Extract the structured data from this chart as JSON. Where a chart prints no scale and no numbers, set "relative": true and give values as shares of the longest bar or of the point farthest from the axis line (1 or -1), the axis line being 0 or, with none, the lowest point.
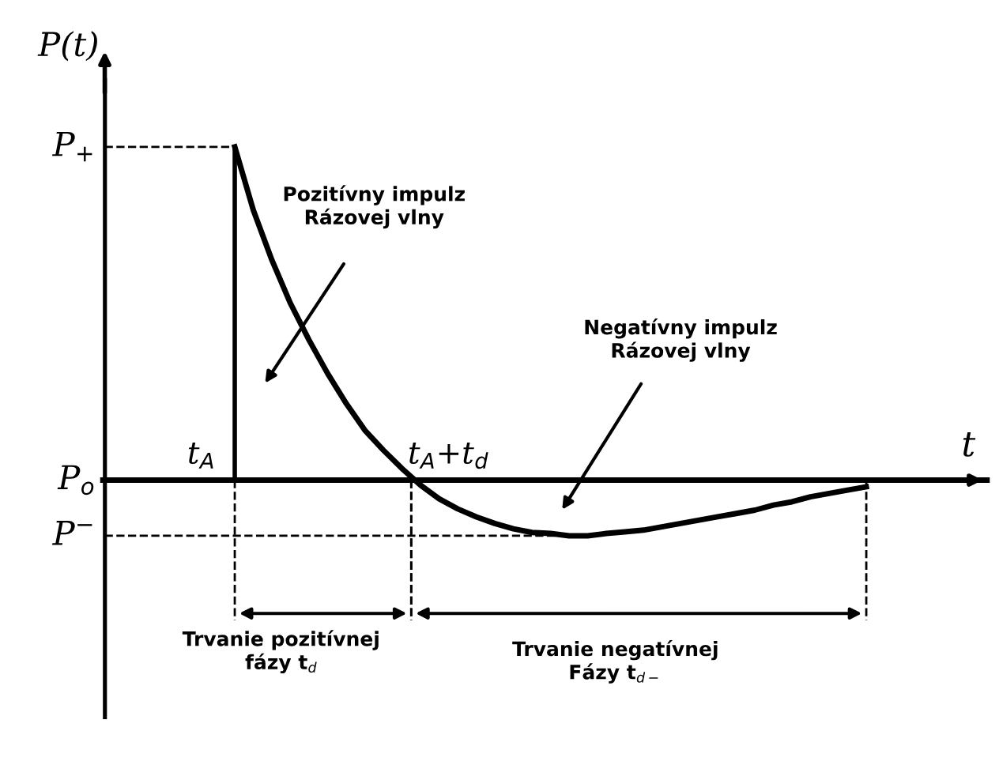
{
  "chart_data": {
    "type": "line",
    "relative": true,
    "ylabel": "P(t)",
    "xlabel": "t",
    "grid": false,
    "marker": "none",
    "line_style": "solid",
    "categories": [
      null,
      null,
      null,
      null,
      null,
      null,
      null,
      null,
      null,
      null,
      null,
      null,
      null,
      null,
      null,
      null,
      null,
      null,
      null,
      null,
      null,
      null,
      null,
      null,
      null,
      null,
      null,
      null,
      null,
      null,
      null,
      null,
      null,
      null,
      null
    ],
    "series": [
      {
        "color": "#000000",
        "values": [
          1,
          0.81,
          0.66,
          0.53,
          0.42,
          0.32,
          0.23,
          0.15,
          0.09,
          0.035,
          -0.015,
          -0.056,
          -0.086,
          -0.11,
          -0.13,
          -0.146,
          -0.157,
          -0.16,
          -0.167,
          -0.167,
          -0.16,
          -0.155,
          -0.15,
          -0.14,
          -0.13,
          -0.12,
          -0.11,
          -0.1,
          -0.09,
          -0.075,
          -0.065,
          -0.05,
          -0.04,
          -0.03,
          -0.02
        ]
      }
    ],
    "annotations": [
      "P$_{+}$",
      "P$_{o}$",
      "P$^{−}$",
      "t$_{A}$",
      "t$_{A}$+t$_{d}$",
      "Pozitívny impulz\nRázovej vlny",
      "Negatívny impulz\nRázovej vlny",
      "Trvanie pozitívnej\nfázy t$_{d}$",
      "Trvanie negatívnej\nFázy t$_{d−}$"
    ]
  }
}
